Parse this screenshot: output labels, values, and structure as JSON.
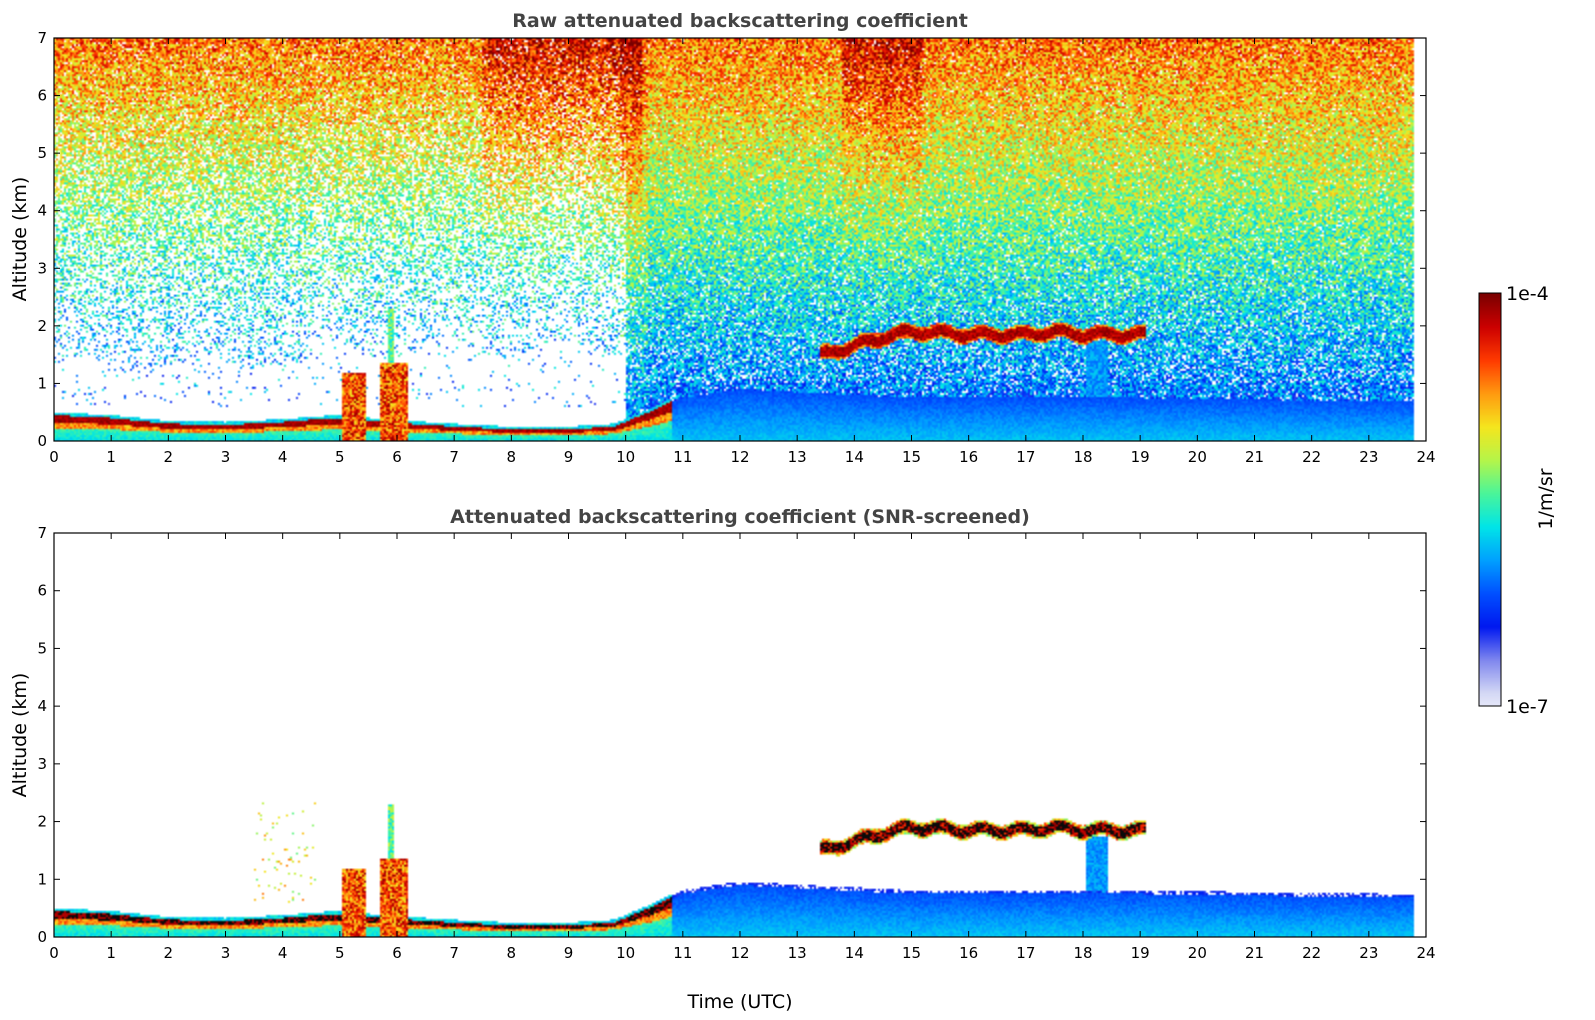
{
  "colormap": [
    "#ffffff",
    "#d5d9f5",
    "#7f87ee",
    "#0018f0",
    "#0050ff",
    "#00a0ff",
    "#00e5e8",
    "#4af59a",
    "#b5f54a",
    "#f5e61e",
    "#ff9a10",
    "#ff3a00",
    "#cc0000",
    "#7a0000"
  ],
  "colorbar": {
    "label": "1/m/sr",
    "max_label": "1e-4",
    "min_label": "1e-7",
    "scale": "log",
    "range": [
      1e-07,
      0.0001
    ]
  },
  "chart_data": [
    {
      "type": "heatmap",
      "title": "Raw attenuated backscattering coefficient",
      "xlabel": "",
      "ylabel": "Altitude (km)",
      "xlim": [
        0,
        24
      ],
      "ylim": [
        0,
        7
      ],
      "xticks": [
        0,
        1,
        2,
        3,
        4,
        5,
        6,
        7,
        8,
        9,
        10,
        11,
        12,
        13,
        14,
        15,
        16,
        17,
        18,
        19,
        20,
        21,
        22,
        23,
        24
      ],
      "yticks": [
        0,
        1,
        2,
        3,
        4,
        5,
        6,
        7
      ],
      "data_end_time": 23.8,
      "screened": false,
      "cloud_layer": [
        {
          "time": 13.4,
          "altitude": 1.5
        },
        {
          "time": 14.0,
          "altitude": 1.65
        },
        {
          "time": 14.5,
          "altitude": 1.8
        },
        {
          "time": 15.0,
          "altitude": 1.9
        },
        {
          "time": 16.0,
          "altitude": 1.85
        },
        {
          "time": 17.0,
          "altitude": 1.85
        },
        {
          "time": 17.5,
          "altitude": 1.9
        },
        {
          "time": 18.0,
          "altitude": 1.85
        },
        {
          "time": 19.1,
          "altitude": 1.85
        }
      ],
      "boundary_layer_top": [
        {
          "time": 0,
          "altitude": 0.45
        },
        {
          "time": 1,
          "altitude": 0.4
        },
        {
          "time": 2,
          "altitude": 0.3
        },
        {
          "time": 3,
          "altitude": 0.28
        },
        {
          "time": 4,
          "altitude": 0.33
        },
        {
          "time": 4.9,
          "altitude": 0.4
        },
        {
          "time": 6.2,
          "altitude": 0.3
        },
        {
          "time": 7,
          "altitude": 0.25
        },
        {
          "time": 8,
          "altitude": 0.2
        },
        {
          "time": 9,
          "altitude": 0.2
        },
        {
          "time": 9.8,
          "altitude": 0.25
        },
        {
          "time": 10.4,
          "altitude": 0.5
        },
        {
          "time": 10.8,
          "altitude": 0.7
        }
      ],
      "convective_plumes": [
        {
          "start": 5.05,
          "end": 5.45,
          "top": 1.2
        },
        {
          "start": 5.7,
          "end": 6.2,
          "top": 1.35
        },
        {
          "start": 5.85,
          "end": 5.95,
          "top": 2.3
        }
      ],
      "aerosol_layer_top": [
        {
          "time": 10.0,
          "altitude": 0.3
        },
        {
          "time": 11.0,
          "altitude": 0.75
        },
        {
          "time": 12.0,
          "altitude": 0.9
        },
        {
          "time": 13.0,
          "altitude": 0.85
        },
        {
          "time": 15.0,
          "altitude": 0.75
        },
        {
          "time": 17.0,
          "altitude": 0.75
        },
        {
          "time": 19.0,
          "altitude": 0.75
        },
        {
          "time": 21.0,
          "altitude": 0.72
        },
        {
          "time": 23.8,
          "altitude": 0.68
        }
      ]
    },
    {
      "type": "heatmap",
      "title": "Attenuated backscattering coefficient (SNR-screened)",
      "xlabel": "Time (UTC)",
      "ylabel": "Altitude (km)",
      "xlim": [
        0,
        24
      ],
      "ylim": [
        0,
        7
      ],
      "xticks": [
        0,
        1,
        2,
        3,
        4,
        5,
        6,
        7,
        8,
        9,
        10,
        11,
        12,
        13,
        14,
        15,
        16,
        17,
        18,
        19,
        20,
        21,
        22,
        23,
        24
      ],
      "yticks": [
        0,
        1,
        2,
        3,
        4,
        5,
        6,
        7
      ],
      "data_end_time": 23.8,
      "screened": true
    }
  ]
}
